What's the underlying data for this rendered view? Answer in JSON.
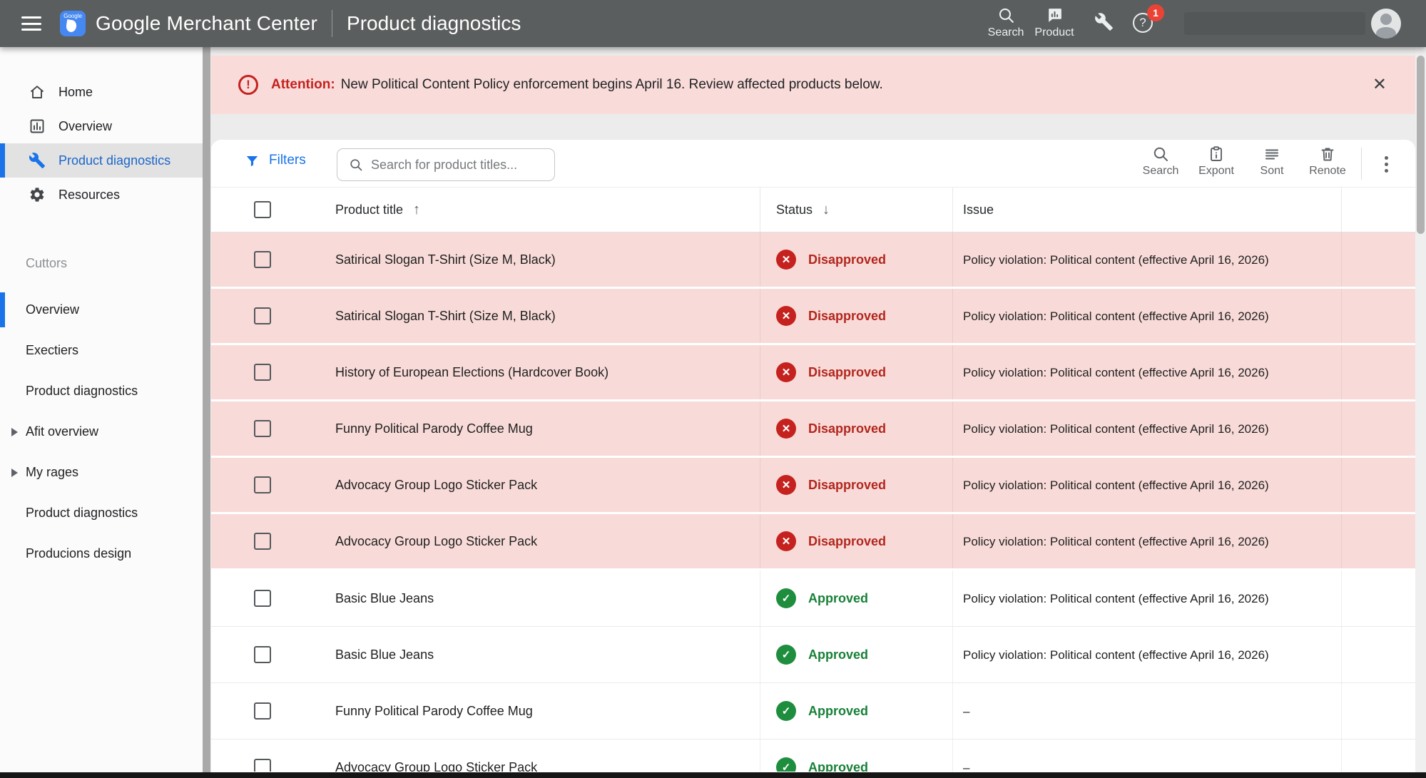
{
  "header": {
    "brand": "Google Merchant Center",
    "page_title": "Product diagnostics",
    "actions": {
      "search_label": "Search",
      "product_label": "Product",
      "help_badge_count": "1"
    }
  },
  "sidebar": {
    "main_items": [
      {
        "label": "Home",
        "icon": "home-icon",
        "selected": false
      },
      {
        "label": "Overview",
        "icon": "overview-chart-icon",
        "selected": false
      },
      {
        "label": "Product diagnostics",
        "icon": "wrench-icon",
        "selected": true
      },
      {
        "label": "Resources",
        "icon": "gear-icon",
        "selected": false
      }
    ],
    "section": {
      "label": "Cuttors",
      "items": [
        {
          "label": "Overview",
          "selected": true,
          "expandable": false
        },
        {
          "label": "Exectiers",
          "selected": false,
          "expandable": false
        },
        {
          "label": "Product diagnostics",
          "selected": false,
          "expandable": false
        },
        {
          "label": "Afit overview",
          "selected": false,
          "expandable": true
        },
        {
          "label": "My rages",
          "selected": false,
          "expandable": true
        },
        {
          "label": "Product diagnostics",
          "selected": false,
          "expandable": false
        },
        {
          "label": "Producions design",
          "selected": false,
          "expandable": false
        }
      ]
    }
  },
  "banner": {
    "prefix": "Attention:",
    "message": "New Political Content Policy enforcement begins April 16. Review affected products below."
  },
  "toolbar": {
    "filters_label": "Filters",
    "search_placeholder": "Search for product titles...",
    "actions": [
      {
        "label": "Search",
        "icon": "search-icon"
      },
      {
        "label": "Expont",
        "icon": "export-clipboard-icon"
      },
      {
        "label": "Sont",
        "icon": "sort-lines-icon"
      },
      {
        "label": "Renote",
        "icon": "trash-icon"
      }
    ]
  },
  "table": {
    "columns": {
      "product": "Product title",
      "status": "Status",
      "issue": "Issue"
    },
    "rows": [
      {
        "title": "Satirical Slogan T-Shirt (Size M, Black)",
        "status": "Disapproved",
        "issue": "Policy violation: Political content (effective April 16, 2026)"
      },
      {
        "title": "Satirical Slogan T-Shirt (Size M, Black)",
        "status": "Disapproved",
        "issue": "Policy violation: Political content (effective April 16, 2026)"
      },
      {
        "title": "History of European Elections (Hardcover Book)",
        "status": "Disapproved",
        "issue": "Policy violation: Political content (effective April 16, 2026)"
      },
      {
        "title": "Funny Political Parody Coffee Mug",
        "status": "Disapproved",
        "issue": "Policy violation: Political content (effective April 16, 2026)"
      },
      {
        "title": "Advocacy Group Logo Sticker Pack",
        "status": "Disapproved",
        "issue": "Policy violation: Political content (effective April 16, 2026)"
      },
      {
        "title": "Advocacy Group Logo Sticker Pack",
        "status": "Disapproved",
        "issue": "Policy violation: Political content (effective April 16, 2026)"
      },
      {
        "title": "Basic Blue Jeans",
        "status": "Approved",
        "issue": "Policy violation: Political content (effective April 16, 2026)"
      },
      {
        "title": "Basic Blue Jeans",
        "status": "Approved",
        "issue": "Policy violation: Political content (effective April 16, 2026)"
      },
      {
        "title": "Funny Political Parody Coffee Mug",
        "status": "Approved",
        "issue": "–"
      },
      {
        "title": "Advocacy Group Logo Sticker Pack",
        "status": "Approved",
        "issue": "–"
      }
    ]
  },
  "colors": {
    "header_bg": "#5b5e5e",
    "accent_blue": "#1a73e8",
    "banner_bg": "#f9dcd9",
    "disapproved_row_bg": "#f8dbd8",
    "disapproved_red": "#b3261e",
    "badge_red": "#c5221f",
    "approved_green": "#188038",
    "notification_red": "#ea4335"
  }
}
